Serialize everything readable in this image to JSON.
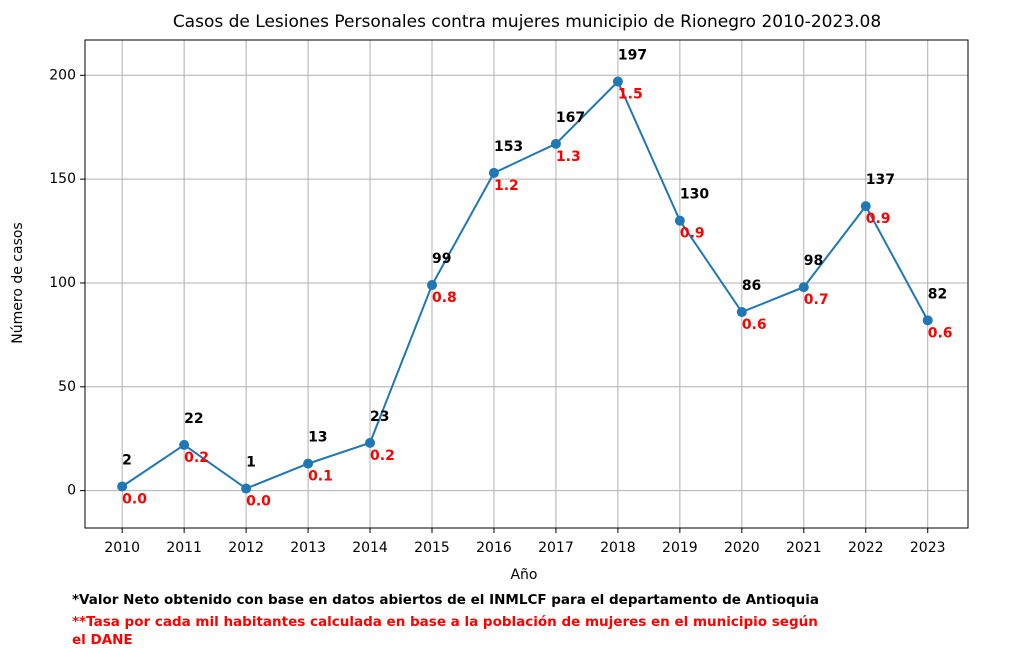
{
  "chart_data": {
    "type": "line",
    "title": "Casos de Lesiones Personales contra mujeres municipio de Rionegro 2010-2023.08",
    "x_label": "Año",
    "y_label": "Número de casos",
    "x": [
      2010,
      2011,
      2012,
      2013,
      2014,
      2015,
      2016,
      2017,
      2018,
      2019,
      2020,
      2021,
      2022,
      2023
    ],
    "series": [
      {
        "name": "Casos",
        "color": "#1f77b4",
        "values": [
          2,
          22,
          1,
          13,
          23,
          99,
          153,
          167,
          197,
          130,
          86,
          98,
          137,
          82
        ],
        "rates": [
          0,
          0.2,
          0,
          0.1,
          0.2,
          0.8,
          1.2,
          1.3,
          1.5,
          0.9,
          0.6,
          0.7,
          0.9,
          0.6
        ],
        "rate_labels": [
          "0.0",
          "0.2",
          "0.0",
          "0.1",
          "0.2",
          "0.8",
          "1.2",
          "1.3",
          "1.5",
          "0.9",
          "0.6",
          "0.7",
          "0.9",
          "0.6"
        ]
      }
    ],
    "rate_color": "#ff0000",
    "xlim": [
      2009.4,
      2023.65
    ],
    "xticks": [
      2010,
      2011,
      2012,
      2013,
      2014,
      2015,
      2016,
      2017,
      2018,
      2019,
      2020,
      2021,
      2022,
      2023
    ],
    "ylim": [
      -18,
      217
    ],
    "yticks": [
      0,
      50,
      100,
      150,
      200
    ],
    "grid": true,
    "notes": [
      "*Valor Neto obtenido con base en datos abiertos de el INMLCF para el departamento de Antioquia",
      "**Tasa por cada mil habitantes calculada en base a la población de mujeres en el municipio según",
      "el DANE"
    ]
  }
}
